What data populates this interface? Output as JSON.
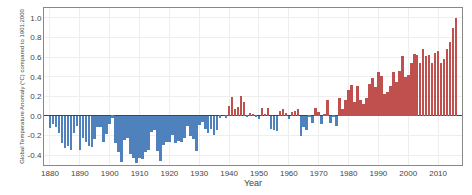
{
  "chart_data": {
    "type": "bar",
    "xlabel": "Year",
    "ylabel": "Global Temperature Anomaly (°C) compared to 1901:2000",
    "x": [
      1880,
      1881,
      1882,
      1883,
      1884,
      1885,
      1886,
      1887,
      1888,
      1889,
      1890,
      1891,
      1892,
      1893,
      1894,
      1895,
      1896,
      1897,
      1898,
      1899,
      1900,
      1901,
      1902,
      1903,
      1904,
      1905,
      1906,
      1907,
      1908,
      1909,
      1910,
      1911,
      1912,
      1913,
      1914,
      1915,
      1916,
      1917,
      1918,
      1919,
      1920,
      1921,
      1922,
      1923,
      1924,
      1925,
      1926,
      1927,
      1928,
      1929,
      1930,
      1931,
      1932,
      1933,
      1934,
      1935,
      1936,
      1937,
      1938,
      1939,
      1940,
      1941,
      1942,
      1943,
      1944,
      1945,
      1946,
      1947,
      1948,
      1949,
      1950,
      1951,
      1952,
      1953,
      1954,
      1955,
      1956,
      1957,
      1958,
      1959,
      1960,
      1961,
      1962,
      1963,
      1964,
      1965,
      1966,
      1967,
      1968,
      1969,
      1970,
      1971,
      1972,
      1973,
      1974,
      1975,
      1976,
      1977,
      1978,
      1979,
      1980,
      1981,
      1982,
      1983,
      1984,
      1985,
      1986,
      1987,
      1988,
      1989,
      1990,
      1991,
      1992,
      1993,
      1994,
      1995,
      1996,
      1997,
      1998,
      1999,
      2000,
      2001,
      2002,
      2003,
      2004,
      2005,
      2006,
      2007,
      2008,
      2009,
      2010,
      2011,
      2012,
      2013,
      2014,
      2015,
      2016
    ],
    "values": [
      -0.12,
      -0.08,
      -0.11,
      -0.17,
      -0.28,
      -0.33,
      -0.31,
      -0.35,
      -0.17,
      -0.1,
      -0.35,
      -0.22,
      -0.27,
      -0.31,
      -0.32,
      -0.23,
      -0.11,
      -0.11,
      -0.27,
      -0.18,
      -0.08,
      -0.02,
      -0.28,
      -0.37,
      -0.47,
      -0.25,
      -0.22,
      -0.39,
      -0.43,
      -0.48,
      -0.43,
      -0.44,
      -0.37,
      -0.35,
      -0.16,
      -0.14,
      -0.36,
      -0.46,
      -0.3,
      -0.27,
      -0.27,
      -0.19,
      -0.28,
      -0.26,
      -0.27,
      -0.22,
      -0.1,
      -0.2,
      -0.24,
      -0.36,
      -0.09,
      -0.06,
      -0.13,
      -0.17,
      -0.13,
      -0.19,
      -0.14,
      -0.02,
      -0.0,
      -0.02,
      0.1,
      0.19,
      0.07,
      0.09,
      0.2,
      0.14,
      -0.01,
      0.03,
      0.01,
      -0.01,
      -0.03,
      0.08,
      0.02,
      0.08,
      -0.13,
      -0.14,
      -0.15,
      0.05,
      0.07,
      0.03,
      -0.03,
      0.04,
      0.05,
      0.07,
      -0.2,
      -0.11,
      -0.14,
      -0.01,
      -0.07,
      0.08,
      0.04,
      -0.08,
      0.01,
      0.16,
      -0.07,
      -0.01,
      -0.1,
      0.18,
      0.07,
      0.16,
      0.26,
      0.32,
      0.14,
      0.31,
      0.16,
      0.12,
      0.18,
      0.33,
      0.39,
      0.29,
      0.45,
      0.41,
      0.22,
      0.24,
      0.31,
      0.45,
      0.35,
      0.46,
      0.61,
      0.4,
      0.42,
      0.54,
      0.63,
      0.62,
      0.54,
      0.68,
      0.61,
      0.62,
      0.54,
      0.64,
      0.66,
      0.54,
      0.58,
      0.68,
      0.75,
      0.9,
      1.0
    ],
    "colors": [
      "#4f81bd",
      "#4f81bd",
      "#4f81bd",
      "#4f81bd",
      "#4f81bd",
      "#4f81bd",
      "#4f81bd",
      "#4f81bd",
      "#4f81bd",
      "#4f81bd",
      "#4f81bd",
      "#4f81bd",
      "#4f81bd",
      "#4f81bd",
      "#4f81bd",
      "#4f81bd",
      "#4f81bd",
      "#4f81bd",
      "#4f81bd",
      "#4f81bd",
      "#4f81bd",
      "#4f81bd",
      "#4f81bd",
      "#4f81bd",
      "#4f81bd",
      "#4f81bd",
      "#4f81bd",
      "#4f81bd",
      "#4f81bd",
      "#4f81bd",
      "#4f81bd",
      "#4f81bd",
      "#4f81bd",
      "#4f81bd",
      "#4f81bd",
      "#4f81bd",
      "#4f81bd",
      "#4f81bd",
      "#4f81bd",
      "#4f81bd",
      "#4f81bd",
      "#4f81bd",
      "#4f81bd",
      "#4f81bd",
      "#4f81bd",
      "#4f81bd",
      "#4f81bd",
      "#4f81bd",
      "#4f81bd",
      "#4f81bd",
      "#4f81bd",
      "#4f81bd",
      "#4f81bd",
      "#4f81bd",
      "#4f81bd",
      "#4f81bd",
      "#4f81bd",
      "#4f81bd",
      "#c0504d",
      "#4f81bd",
      "#c0504d",
      "#c0504d",
      "#c0504d",
      "#c0504d",
      "#c0504d",
      "#c0504d",
      "#4f81bd",
      "#c0504d",
      "#c0504d",
      "#4f81bd",
      "#4f81bd",
      "#c0504d",
      "#c0504d",
      "#c0504d",
      "#4f81bd",
      "#4f81bd",
      "#4f81bd",
      "#c0504d",
      "#c0504d",
      "#c0504d",
      "#4f81bd",
      "#c0504d",
      "#c0504d",
      "#c0504d",
      "#4f81bd",
      "#4f81bd",
      "#4f81bd",
      "#4f81bd",
      "#4f81bd",
      "#c0504d",
      "#c0504d",
      "#4f81bd",
      "#c0504d",
      "#c0504d",
      "#4f81bd",
      "#4f81bd",
      "#4f81bd",
      "#c0504d",
      "#c0504d",
      "#c0504d",
      "#c0504d",
      "#c0504d",
      "#c0504d",
      "#c0504d",
      "#c0504d",
      "#c0504d",
      "#c0504d",
      "#c0504d",
      "#c0504d",
      "#c0504d",
      "#c0504d",
      "#c0504d",
      "#c0504d",
      "#c0504d",
      "#c0504d",
      "#c0504d",
      "#c0504d",
      "#c0504d",
      "#c0504d",
      "#c0504d",
      "#c0504d",
      "#c0504d",
      "#c0504d",
      "#c0504d",
      "#c0504d",
      "#c0504d",
      "#c0504d",
      "#c0504d",
      "#c0504d",
      "#c0504d",
      "#c0504d",
      "#c0504d",
      "#c0504d",
      "#c0504d",
      "#c0504d",
      "#c0504d",
      "#c0504d"
    ],
    "xlim": [
      1878,
      2018
    ],
    "xticks": [
      1880,
      1890,
      1900,
      1910,
      1920,
      1930,
      1940,
      1950,
      1960,
      1970,
      1980,
      1990,
      2000,
      2010
    ],
    "ylim": [
      -0.5,
      1.1
    ],
    "yticks": [
      -0.4,
      -0.2,
      {
        "value": 0.0,
        "label": "0.0"
      },
      0.2,
      0.4,
      0.6,
      0.8,
      {
        "value": 1.0,
        "label": "1.0"
      }
    ],
    "grid": true
  }
}
